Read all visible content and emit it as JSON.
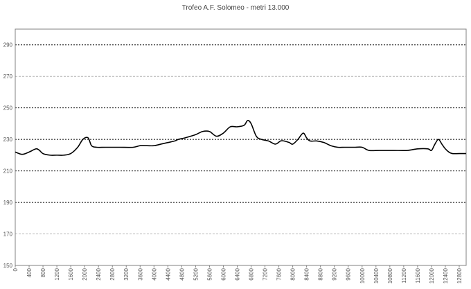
{
  "chart_data": {
    "type": "line",
    "title": "Trofeo A.F. Solomeo - metri 13.000",
    "xlabel": "",
    "ylabel": "",
    "xlim": [
      0,
      13000
    ],
    "ylim": [
      150,
      300
    ],
    "yticks": [
      150,
      170,
      190,
      210,
      230,
      250,
      270,
      290
    ],
    "yticks_major": [
      190,
      210,
      230,
      250,
      290
    ],
    "xticks": [
      0,
      400,
      800,
      1200,
      1600,
      2000,
      2400,
      2800,
      3200,
      3600,
      4000,
      4400,
      4800,
      5200,
      5600,
      6000,
      6400,
      6800,
      7200,
      7600,
      8000,
      8400,
      8800,
      9200,
      9600,
      10000,
      10400,
      10800,
      11200,
      11600,
      12000,
      12400,
      12800
    ],
    "grid": "horizontal",
    "colors": {
      "line": "#000000",
      "major_grid": "#000000",
      "minor_grid": "#b4b4b4",
      "axis": "#808080"
    },
    "series": [
      {
        "x": [
          0,
          200,
          400,
          600,
          700,
          800,
          1000,
          1200,
          1400,
          1600,
          1800,
          1950,
          2100,
          2200,
          2350,
          2600,
          3000,
          3400,
          3600,
          3800,
          4000,
          4200,
          4400,
          4600,
          4700,
          4900,
          5200,
          5400,
          5600,
          5800,
          6000,
          6200,
          6400,
          6600,
          6700,
          6800,
          6950,
          7100,
          7300,
          7500,
          7650,
          7750,
          7900,
          8000,
          8150,
          8300,
          8400,
          8500,
          8700,
          8900,
          9100,
          9300,
          9500,
          9800,
          10000,
          10200,
          10500,
          10900,
          11300,
          11600,
          11900,
          12000,
          12100,
          12200,
          12300,
          12400,
          12500,
          12600,
          12800,
          13000
        ],
        "y": [
          222,
          220.5,
          222,
          224,
          223,
          221,
          220,
          220,
          220,
          221,
          225,
          230,
          231,
          226,
          225,
          225,
          225,
          225,
          226,
          226,
          226,
          227,
          228,
          229,
          230,
          231,
          233,
          235,
          235,
          232,
          234,
          238,
          238,
          239,
          242,
          240,
          232,
          230,
          229,
          227,
          229,
          229,
          228,
          227,
          230,
          234,
          231,
          229,
          229,
          228,
          226,
          225,
          225,
          225,
          225,
          223,
          223,
          223,
          223,
          224,
          224,
          223,
          227,
          230,
          227,
          224,
          222,
          221,
          221,
          221
        ]
      }
    ]
  }
}
